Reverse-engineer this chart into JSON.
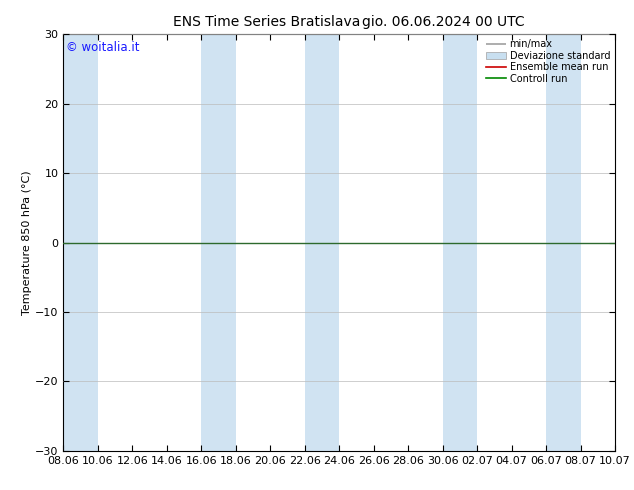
{
  "title": "ENS Time Series Bratislava",
  "title2": "gio. 06.06.2024 00 UTC",
  "ylabel": "Temperature 850 hPa (°C)",
  "ylim": [
    -30,
    30
  ],
  "yticks": [
    -30,
    -20,
    -10,
    0,
    10,
    20,
    30
  ],
  "x_labels": [
    "08.06",
    "10.06",
    "12.06",
    "14.06",
    "16.06",
    "18.06",
    "20.06",
    "22.06",
    "24.06",
    "26.06",
    "28.06",
    "30.06",
    "02.07",
    "04.07",
    "06.07",
    "08.07",
    "10.07"
  ],
  "num_ticks": 17,
  "band_color": "#c8dff0",
  "band_alpha": 0.85,
  "background_color": "#ffffff",
  "plot_bg_color": "#ffffff",
  "zero_line_color": "#2d6a2d",
  "watermark": "© woitalia.it",
  "watermark_color": "#1a1aff",
  "legend_entries": [
    "min/max",
    "Deviazione standard",
    "Ensemble mean run",
    "Controll run"
  ],
  "legend_line_color": "#a0a0a0",
  "legend_dev_color": "#c8dff0",
  "legend_ens_color": "#cc0000",
  "legend_ctrl_color": "#008800",
  "title_fontsize": 10,
  "axis_label_fontsize": 8,
  "tick_fontsize": 8,
  "border_color": "#000000"
}
